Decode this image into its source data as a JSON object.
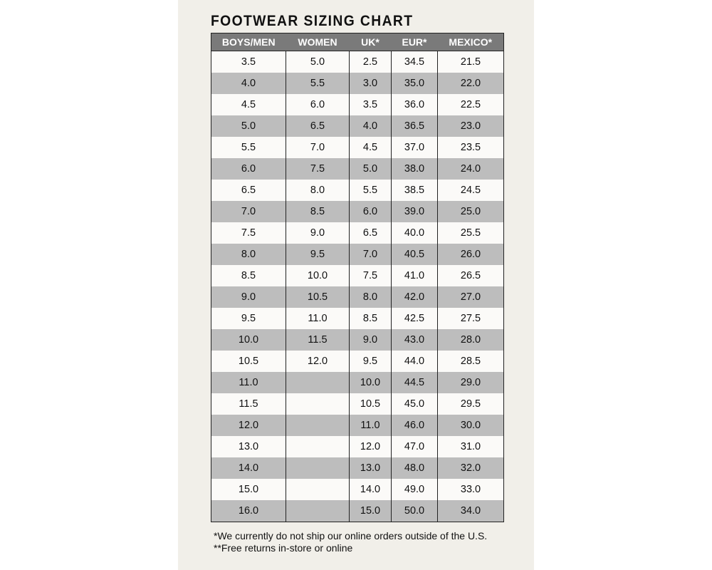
{
  "title": "FOOTWEAR SIZING CHART",
  "columns": [
    "BOYS/MEN",
    "WOMEN",
    "UK*",
    "EUR*",
    "MEXICO*"
  ],
  "rows": [
    [
      "3.5",
      "5.0",
      "2.5",
      "34.5",
      "21.5"
    ],
    [
      "4.0",
      "5.5",
      "3.0",
      "35.0",
      "22.0"
    ],
    [
      "4.5",
      "6.0",
      "3.5",
      "36.0",
      "22.5"
    ],
    [
      "5.0",
      "6.5",
      "4.0",
      "36.5",
      "23.0"
    ],
    [
      "5.5",
      "7.0",
      "4.5",
      "37.0",
      "23.5"
    ],
    [
      "6.0",
      "7.5",
      "5.0",
      "38.0",
      "24.0"
    ],
    [
      "6.5",
      "8.0",
      "5.5",
      "38.5",
      "24.5"
    ],
    [
      "7.0",
      "8.5",
      "6.0",
      "39.0",
      "25.0"
    ],
    [
      "7.5",
      "9.0",
      "6.5",
      "40.0",
      "25.5"
    ],
    [
      "8.0",
      "9.5",
      "7.0",
      "40.5",
      "26.0"
    ],
    [
      "8.5",
      "10.0",
      "7.5",
      "41.0",
      "26.5"
    ],
    [
      "9.0",
      "10.5",
      "8.0",
      "42.0",
      "27.0"
    ],
    [
      "9.5",
      "11.0",
      "8.5",
      "42.5",
      "27.5"
    ],
    [
      "10.0",
      "11.5",
      "9.0",
      "43.0",
      "28.0"
    ],
    [
      "10.5",
      "12.0",
      "9.5",
      "44.0",
      "28.5"
    ],
    [
      "11.0",
      "",
      "10.0",
      "44.5",
      "29.0"
    ],
    [
      "11.5",
      "",
      "10.5",
      "45.0",
      "29.5"
    ],
    [
      "12.0",
      "",
      "11.0",
      "46.0",
      "30.0"
    ],
    [
      "13.0",
      "",
      "12.0",
      "47.0",
      "31.0"
    ],
    [
      "14.0",
      "",
      "13.0",
      "48.0",
      "32.0"
    ],
    [
      "15.0",
      "",
      "14.0",
      "49.0",
      "33.0"
    ],
    [
      "16.0",
      "",
      "15.0",
      "50.0",
      "34.0"
    ]
  ],
  "notes": [
    "*We currently do not ship our online orders outside of the U.S.",
    "**Free returns in-store or online"
  ],
  "colors": {
    "header": "#7a7a7a",
    "stripe": "#bdbdbd",
    "paper": "#f1efe9"
  }
}
